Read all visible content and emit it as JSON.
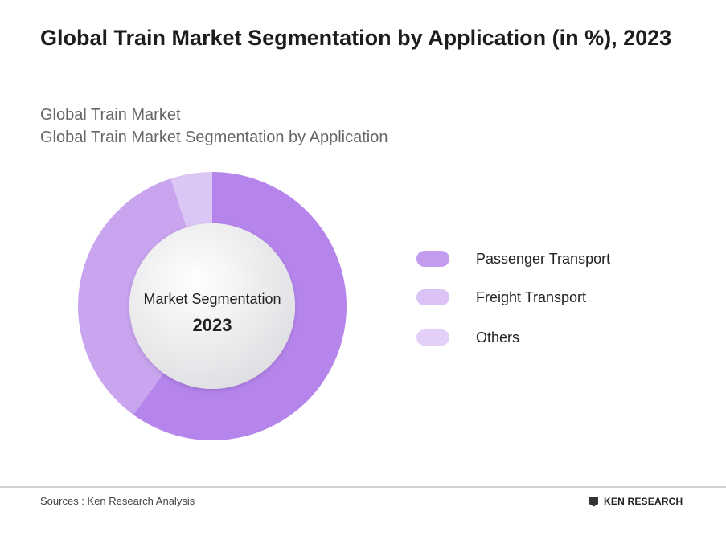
{
  "chart_data": {
    "type": "pie",
    "subtype": "donut",
    "title": "Global Train Market Segmentation by Application (in %), 2023",
    "subtitle_lines": [
      "Global Train Market",
      "Global Train Market Segmentation by Application"
    ],
    "center_label": "Market Segmentation",
    "center_value": "2023",
    "categories": [
      "Passenger Transport",
      "Freight Transport",
      "Others"
    ],
    "values": [
      60,
      35,
      5
    ],
    "colors": [
      "#b585ec",
      "#c9a4ef",
      "#dcc6f6"
    ],
    "legend_colors": [
      "#c39bef",
      "#dcc3f5",
      "#e3cff7"
    ],
    "legend_position": "right"
  },
  "footer": {
    "source": "Sources : Ken Research Analysis",
    "logo_text": "KEN RESEARCH"
  }
}
